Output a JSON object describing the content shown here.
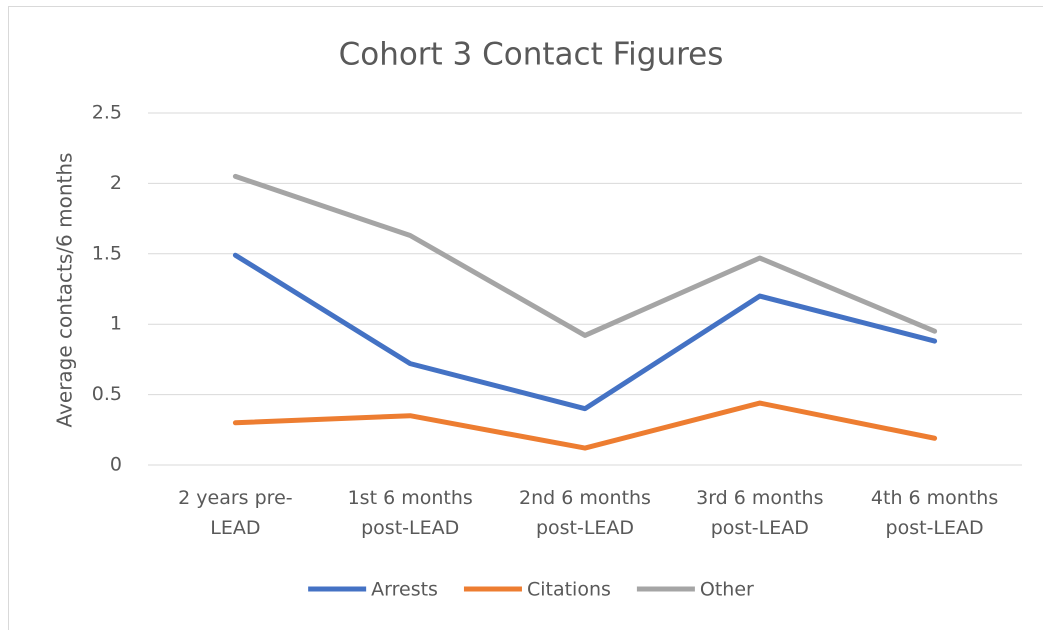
{
  "chart_data": {
    "type": "line",
    "title": "Cohort 3 Contact Figures",
    "y_label": "Average contacts/6 months",
    "categories": [
      "2 years pre-LEAD",
      "1st 6 months post-LEAD",
      "2nd 6 months post-LEAD",
      "3rd 6 months post-LEAD",
      "4th 6 months post-LEAD"
    ],
    "series": [
      {
        "name": "Arrests",
        "color": "#4472c4",
        "values": [
          1.49,
          0.72,
          0.4,
          1.2,
          0.88
        ]
      },
      {
        "name": "Citations",
        "color": "#ed7d31",
        "values": [
          0.3,
          0.35,
          0.12,
          0.44,
          0.19
        ]
      },
      {
        "name": "Other",
        "color": "#a5a5a5",
        "values": [
          2.05,
          1.63,
          0.92,
          1.47,
          0.95
        ]
      }
    ],
    "ylim": [
      0,
      2.5
    ],
    "yticks": [
      0,
      0.5,
      1,
      1.5,
      2,
      2.5
    ],
    "grid": true,
    "legend": "bottom"
  }
}
